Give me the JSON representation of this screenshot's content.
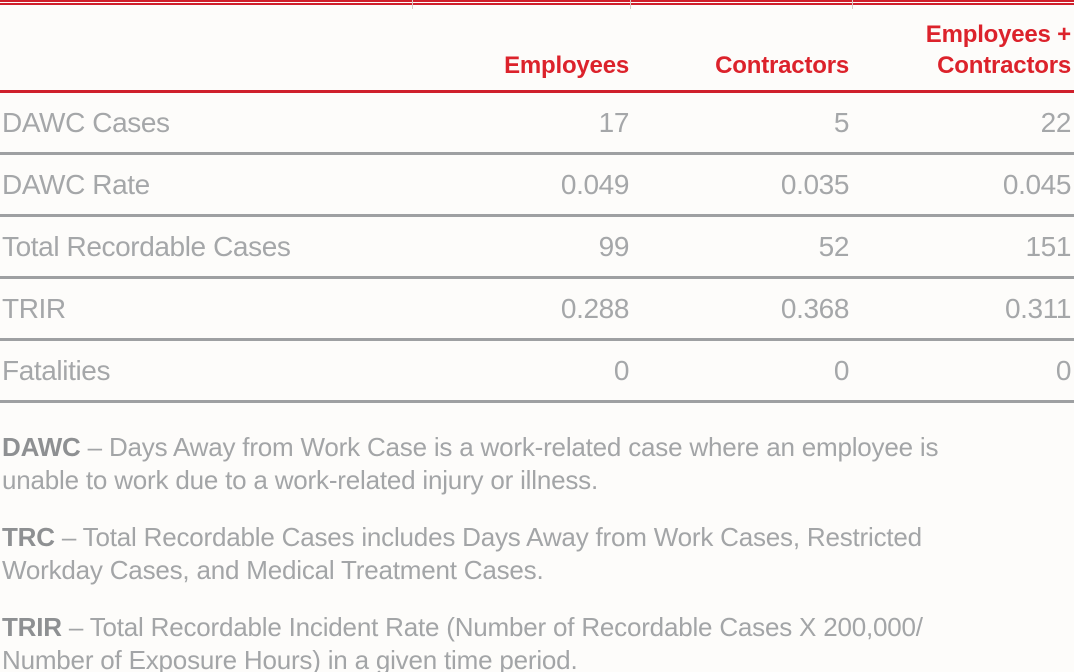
{
  "chart_data": {
    "type": "table",
    "columns": [
      "",
      "Employees",
      "Contractors",
      "Employees + Contractors"
    ],
    "rows": [
      {
        "label": "DAWC Cases",
        "values": [
          "17",
          "5",
          "22"
        ]
      },
      {
        "label": "DAWC Rate",
        "values": [
          "0.049",
          "0.035",
          "0.045"
        ]
      },
      {
        "label": "Total Recordable Cases",
        "values": [
          "99",
          "52",
          "151"
        ]
      },
      {
        "label": "TRIR",
        "values": [
          "0.288",
          "0.368",
          "0.311"
        ]
      },
      {
        "label": "Fatalities",
        "values": [
          "0",
          "0",
          "0"
        ]
      }
    ],
    "footnotes": [
      {
        "term": "DAWC",
        "rest_line1": " – Days Away from Work Case is a work-related case where an employee is",
        "line2": "unable to work due to a work-related injury or illness."
      },
      {
        "term": "TRC",
        "rest_line1": " – Total Recordable Cases includes Days Away from Work Cases, Restricted",
        "line2": "Workday Cases, and Medical Treatment Cases."
      },
      {
        "term": "TRIR",
        "rest_line1": " – Total Recordable Incident Rate (Number of Recordable Cases X 200,000/",
        "line2": "Number of Exposure Hours) in a given time period."
      }
    ]
  },
  "theme": {
    "accent_red": "#DC222B",
    "rule_red": "#CF1F2B",
    "text_gray": "#A5A7A9",
    "term_gray": "#8E9092",
    "line_gray": "#9EA0A2",
    "background": "#FDFCFA"
  }
}
